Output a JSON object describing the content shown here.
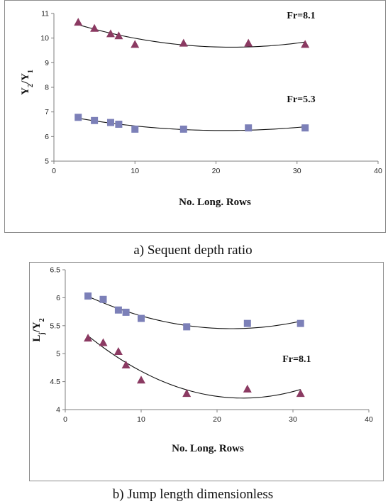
{
  "chart_data": [
    {
      "type": "scatter",
      "caption": "a) Sequent depth ratio",
      "xlabel": "No. Long. Rows",
      "ylabel_main": "Y",
      "ylabel_sub1": "2",
      "ylabel_mid": "/Y",
      "ylabel_sub2": "1",
      "xlim": [
        0,
        40
      ],
      "ylim": [
        5,
        11
      ],
      "xticks": [
        0,
        10,
        20,
        30,
        40
      ],
      "yticks": [
        5,
        6,
        7,
        8,
        9,
        10,
        11
      ],
      "grid": false,
      "series": [
        {
          "marker": "triangle",
          "color": "#8b3a62",
          "x": [
            3,
            5,
            7,
            8,
            10,
            16,
            24,
            31
          ],
          "y": [
            10.65,
            10.4,
            10.18,
            10.1,
            9.75,
            9.8,
            9.8,
            9.75
          ],
          "trendline": "poly2"
        },
        {
          "marker": "square",
          "color": "#7c80b8",
          "x": [
            3,
            5,
            7,
            8,
            10,
            16,
            24,
            31
          ],
          "y": [
            6.78,
            6.65,
            6.57,
            6.5,
            6.3,
            6.3,
            6.35,
            6.35
          ],
          "trendline": "poly2"
        }
      ],
      "annotations": [
        {
          "text": "Fr=8.1",
          "x": 30.5,
          "y": 10.8
        },
        {
          "text": "Fr=5.3",
          "x": 30.5,
          "y": 7.4
        }
      ]
    },
    {
      "type": "scatter",
      "caption": "b) Jump length dimensionless",
      "xlabel": "No. Long. Rows",
      "ylabel_main": "L",
      "ylabel_sub1": "j",
      "ylabel_mid": "/Y",
      "ylabel_sub2": "2",
      "xlim": [
        0,
        40
      ],
      "ylim": [
        4,
        6.5
      ],
      "xticks": [
        0,
        10,
        20,
        30,
        40
      ],
      "yticks": [
        4,
        4.5,
        5,
        5.5,
        6,
        6.5
      ],
      "grid": false,
      "series": [
        {
          "marker": "square",
          "color": "#7c80b8",
          "x": [
            3,
            5,
            7,
            8,
            10,
            16,
            24,
            31
          ],
          "y": [
            6.03,
            5.97,
            5.78,
            5.74,
            5.63,
            5.48,
            5.54,
            5.54
          ],
          "trendline": "poly2"
        },
        {
          "marker": "triangle",
          "color": "#8b3a62",
          "x": [
            3,
            5,
            7,
            8,
            10,
            16,
            24,
            31
          ],
          "y": [
            5.28,
            5.2,
            5.04,
            4.8,
            4.53,
            4.29,
            4.37,
            4.29
          ],
          "trendline": "poly2"
        }
      ],
      "annotations": [
        {
          "text": "Fr=8.1",
          "x": 30.5,
          "y": 4.85
        }
      ]
    }
  ]
}
